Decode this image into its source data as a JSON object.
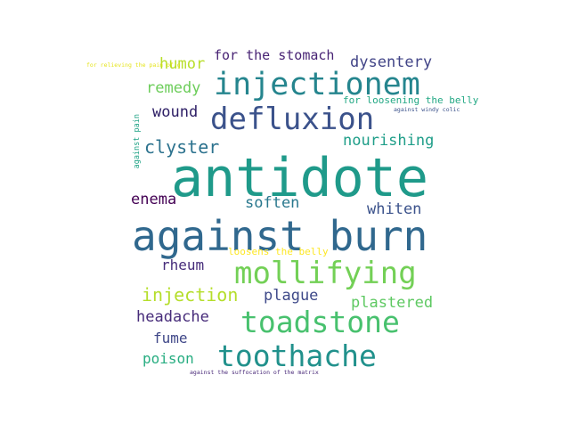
{
  "word_cloud": {
    "words": [
      {
        "text": "antidote",
        "color": "#1f9a8a"
      },
      {
        "text": "against burn",
        "color": "#30688e"
      },
      {
        "text": "injectionem",
        "color": "#25858e"
      },
      {
        "text": "defluxion",
        "color": "#3b528b"
      },
      {
        "text": "mollifying",
        "color": "#73d056"
      },
      {
        "text": "toadstone",
        "color": "#48c16e"
      },
      {
        "text": "toothache",
        "color": "#21918c"
      },
      {
        "text": "injection",
        "color": "#b5de2b"
      },
      {
        "text": "clyster",
        "color": "#2c728e"
      },
      {
        "text": "plastered",
        "color": "#5ec962"
      },
      {
        "text": "nourishing",
        "color": "#1f9e89"
      },
      {
        "text": "remedy",
        "color": "#6ccd5a"
      },
      {
        "text": "dysentery",
        "color": "#414487"
      },
      {
        "text": "humor",
        "color": "#b8de29"
      },
      {
        "text": "wound",
        "color": "#2d1e65"
      },
      {
        "text": "headache",
        "color": "#472c7a"
      },
      {
        "text": "plague",
        "color": "#3e4989"
      },
      {
        "text": "whiten",
        "color": "#3b528b"
      },
      {
        "text": "enema",
        "color": "#440154"
      },
      {
        "text": "soften",
        "color": "#2a788e"
      },
      {
        "text": "rheum",
        "color": "#472d7b"
      },
      {
        "text": "fume",
        "color": "#3f4788"
      },
      {
        "text": "poison",
        "color": "#27ad81"
      },
      {
        "text": "for the stomach",
        "color": "#482374"
      },
      {
        "text": "for loosening the belly",
        "color": "#22a884"
      },
      {
        "text": "loosens the belly",
        "color": "#fde725"
      },
      {
        "text": "for relieving the pain of g",
        "color": "#e5e419"
      },
      {
        "text": "against windy colic",
        "color": "#3b528b"
      },
      {
        "text": "against the suffocation of the matrix",
        "color": "#482878"
      },
      {
        "text": "against pain",
        "color": "#20a386"
      }
    ]
  }
}
